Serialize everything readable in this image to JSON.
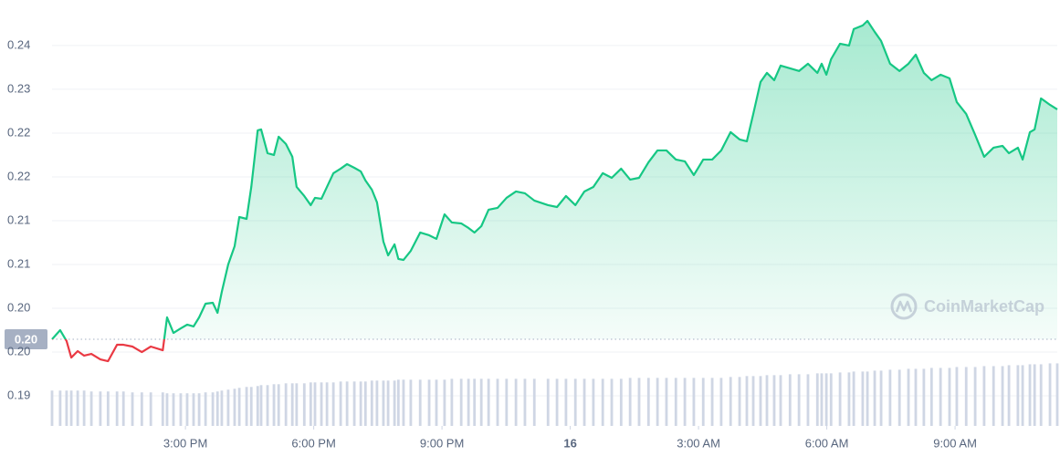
{
  "chart_data": {
    "type": "line",
    "x": [
      11.88,
      12.07,
      12.22,
      12.33,
      12.48,
      12.63,
      12.8,
      13.01,
      13.19,
      13.4,
      13.55,
      13.76,
      13.98,
      14.19,
      14.47,
      14.57,
      14.72,
      14.89,
      15.04,
      15.19,
      15.32,
      15.47,
      15.64,
      15.75,
      15.85,
      16.0,
      16.15,
      16.26,
      16.43,
      16.54,
      16.69,
      16.77,
      16.92,
      17.07,
      17.18,
      17.35,
      17.5,
      17.6,
      17.78,
      17.93,
      18.03,
      18.18,
      18.31,
      18.46,
      18.63,
      18.78,
      18.95,
      19.1,
      19.21,
      19.36,
      19.48,
      19.63,
      19.74,
      19.89,
      19.98,
      20.1,
      20.27,
      20.49,
      20.7,
      20.87,
      21.06,
      21.23,
      21.45,
      21.62,
      21.76,
      21.92,
      22.09,
      22.3,
      22.51,
      22.73,
      22.94,
      23.16,
      23.48,
      23.69,
      23.9,
      24.12,
      24.33,
      24.54,
      24.76,
      24.97,
      25.19,
      25.4,
      25.61,
      25.83,
      26.04,
      26.25,
      26.47,
      26.68,
      26.89,
      27.11,
      27.32,
      27.53,
      27.75,
      27.96,
      28.13,
      28.28,
      28.45,
      28.6,
      28.77,
      28.92,
      29.14,
      29.35,
      29.56,
      29.78,
      29.88,
      29.99,
      30.1,
      30.31,
      30.52,
      30.63,
      30.84,
      30.95,
      31.12,
      31.27,
      31.48,
      31.7,
      31.91,
      32.08,
      32.27,
      32.45,
      32.66,
      32.87,
      33.04,
      33.26,
      33.47,
      33.68,
      33.9,
      34.11,
      34.26,
      34.47,
      34.58,
      34.75,
      34.86,
      35.01,
      35.22,
      35.39
    ],
    "values": [
      0.20089,
      0.20195,
      0.20068,
      0.19876,
      0.19951,
      0.19898,
      0.19919,
      0.19855,
      0.19834,
      0.20025,
      0.20025,
      0.20004,
      0.1994,
      0.20004,
      0.19961,
      0.20344,
      0.20163,
      0.20216,
      0.20259,
      0.20238,
      0.20344,
      0.20503,
      0.20514,
      0.20397,
      0.20641,
      0.2096,
      0.21173,
      0.21513,
      0.21491,
      0.21863,
      0.22522,
      0.22533,
      0.22256,
      0.22235,
      0.22448,
      0.22363,
      0.22214,
      0.21863,
      0.21757,
      0.21651,
      0.21736,
      0.21725,
      0.21863,
      0.22023,
      0.22076,
      0.22129,
      0.22086,
      0.22044,
      0.21938,
      0.21831,
      0.21683,
      0.21226,
      0.21066,
      0.21194,
      0.21024,
      0.21013,
      0.21119,
      0.21332,
      0.213,
      0.21258,
      0.21544,
      0.21449,
      0.21438,
      0.21385,
      0.21332,
      0.21406,
      0.21598,
      0.21619,
      0.21736,
      0.2181,
      0.21789,
      0.21704,
      0.21651,
      0.21629,
      0.21757,
      0.21651,
      0.2181,
      0.21863,
      0.22023,
      0.21969,
      0.22076,
      0.21948,
      0.21969,
      0.2215,
      0.22288,
      0.22288,
      0.22182,
      0.22161,
      0.22001,
      0.22182,
      0.22182,
      0.22288,
      0.22501,
      0.22416,
      0.22394,
      0.22713,
      0.23085,
      0.23191,
      0.23106,
      0.23276,
      0.23244,
      0.23213,
      0.23298,
      0.23191,
      0.23298,
      0.2317,
      0.23351,
      0.23531,
      0.2351,
      0.23701,
      0.23744,
      0.23797,
      0.23669,
      0.23563,
      0.23298,
      0.23213,
      0.23298,
      0.23404,
      0.23191,
      0.23106,
      0.2317,
      0.23128,
      0.22851,
      0.22713,
      0.22469,
      0.22214,
      0.2232,
      0.22341,
      0.22256,
      0.2232,
      0.22182,
      0.22501,
      0.22533,
      0.22894,
      0.22819,
      0.22766
    ],
    "color": "#16c784",
    "down_color": "#ea3943",
    "reference": {
      "value": 0.20089,
      "label": "0.20"
    },
    "volume": {
      "axis": "y2",
      "color": "#cfd6e4",
      "values": [
        39,
        39,
        39,
        39,
        39,
        39,
        38,
        38,
        38,
        38,
        38,
        37,
        37,
        37,
        37,
        36,
        36,
        36,
        36,
        36,
        36,
        37,
        37,
        38,
        39,
        40,
        41,
        42,
        43,
        43,
        44,
        45,
        45,
        46,
        46,
        47,
        47,
        47,
        47,
        48,
        48,
        48,
        48,
        48,
        49,
        49,
        49,
        49,
        49,
        50,
        50,
        50,
        50,
        50,
        51,
        51,
        51,
        51,
        51,
        51,
        51,
        52,
        52,
        52,
        52,
        52,
        52,
        52,
        52,
        52,
        52,
        52,
        52,
        52,
        52,
        52,
        52,
        52,
        52,
        52,
        52,
        53,
        53,
        53,
        53,
        53,
        53,
        53,
        53,
        53,
        53,
        53,
        54,
        54,
        55,
        55,
        55,
        56,
        56,
        56,
        57,
        57,
        57,
        58,
        58,
        58,
        58,
        59,
        59,
        60,
        60,
        60,
        61,
        61,
        62,
        62,
        63,
        63,
        63,
        64,
        64,
        64,
        65,
        65,
        65,
        66,
        66,
        66,
        67,
        67,
        67,
        68,
        68,
        68,
        69,
        69
      ]
    },
    "xlim": [
      11.88,
      35.39
    ],
    "xticks": [
      {
        "value": 15,
        "label": "3:00 PM"
      },
      {
        "value": 18,
        "label": "6:00 PM"
      },
      {
        "value": 21,
        "label": "9:00 PM"
      },
      {
        "value": 24,
        "label": "16"
      },
      {
        "value": 27,
        "label": "3:00 AM"
      },
      {
        "value": 30,
        "label": "6:00 AM"
      },
      {
        "value": 33,
        "label": "9:00 AM"
      }
    ],
    "ylim": [
      0.1908,
      0.2404
    ],
    "yticks": [
      {
        "value": 0.2351,
        "label": "0.24"
      },
      0.23,
      {
        "value": 0.2249,
        "label": "0.22"
      },
      {
        "value": 0.2198,
        "label": "0.22"
      },
      {
        "value": 0.2147,
        "label": "0.21"
      },
      {
        "value": 0.2096,
        "label": "0.21"
      },
      {
        "value": 0.2045,
        "label": "0.20"
      },
      {
        "value": 0.1994,
        "label": "0.20"
      },
      {
        "value": 0.1943,
        "label": "0.19"
      }
    ],
    "y2lim": [
      0,
      470
    ],
    "grid": true,
    "watermark": "CoinMarketCap"
  }
}
